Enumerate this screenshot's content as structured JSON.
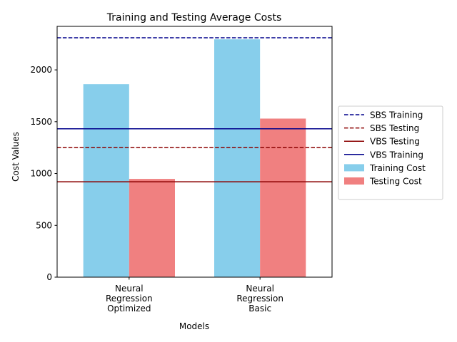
{
  "chart_data": {
    "type": "bar",
    "title": "Training and Testing Average Costs",
    "xlabel": "Models",
    "ylabel": "Cost Values",
    "ylim": [
      0,
      2420
    ],
    "yticks": [
      0,
      500,
      1000,
      1500,
      2000
    ],
    "categories": [
      [
        "Neural",
        "Regression",
        "Optimized"
      ],
      [
        "Neural",
        "Regression",
        "Basic"
      ]
    ],
    "series": [
      {
        "name": "Training Cost",
        "color": "#87ceeb",
        "values": [
          1862,
          2295
        ]
      },
      {
        "name": "Testing Cost",
        "color": "#f08080",
        "values": [
          948,
          1530
        ]
      }
    ],
    "reference_lines": [
      {
        "name": "SBS Training",
        "value": 2310,
        "color": "#00008b",
        "style": "dashed"
      },
      {
        "name": "SBS Testing",
        "value": 1250,
        "color": "#8b0000",
        "style": "dashed"
      },
      {
        "name": "VBS Testing",
        "value": 920,
        "color": "#8b0000",
        "style": "solid"
      },
      {
        "name": "VBS Training",
        "value": 1432,
        "color": "#00008b",
        "style": "solid"
      }
    ],
    "legend_position": "right",
    "grid": false
  }
}
